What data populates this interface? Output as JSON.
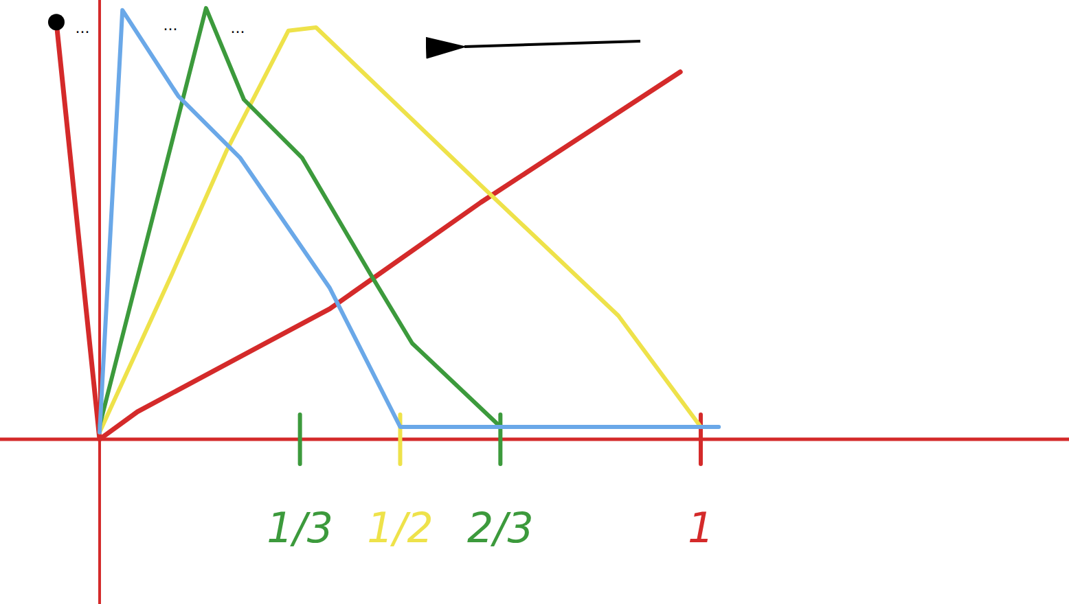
{
  "chart_data": {
    "type": "line",
    "xlim": [
      -0.1657,
      1.6126
    ],
    "ylim": [
      -0.4,
      1.0667
    ],
    "xticks": [
      {
        "value": 0.3333,
        "label": "1/3",
        "color": "#3c9a3c"
      },
      {
        "value": 0.5,
        "label": "1/2",
        "color": "#eee24a"
      },
      {
        "value": 0.6667,
        "label": "2/3",
        "color": "#3c9a3c"
      },
      {
        "value": 1,
        "label": "1",
        "color": "#d42a2a"
      }
    ],
    "yticks": [],
    "tick_labels": "x",
    "grid": false,
    "annotations": [
      "...",
      "...",
      "..."
    ],
    "series": [
      {
        "color": "#d42a2a",
        "x": [
          -0.072,
          0,
          0.063,
          0.383,
          0.634,
          0.966
        ],
        "values": [
          1.013,
          0,
          0.067,
          0.317,
          0.575,
          0.892
        ]
      },
      {
        "color": "#eee24a",
        "x": [
          0,
          0.12,
          0.211,
          0.314,
          0.36,
          0.634,
          0.863,
          1
        ],
        "values": [
          0.017,
          0.4,
          0.7,
          0.992,
          1.0,
          0.617,
          0.3,
          0.03
        ]
      },
      {
        "color": "#3c9a3c",
        "x": [
          0,
          0.177,
          0.24,
          0.337,
          0.451,
          0.52,
          0.667,
          1
        ],
        "values": [
          0.033,
          1.047,
          0.825,
          0.683,
          0.4,
          0.233,
          0.03,
          0.03
        ]
      },
      {
        "color": "#6aa8e8",
        "x": [
          0,
          0.038,
          0.131,
          0.234,
          0.383,
          0.5,
          1.03
        ],
        "values": [
          0.017,
          1.042,
          0.833,
          0.683,
          0.367,
          0.03,
          0.03
        ]
      }
    ]
  }
}
